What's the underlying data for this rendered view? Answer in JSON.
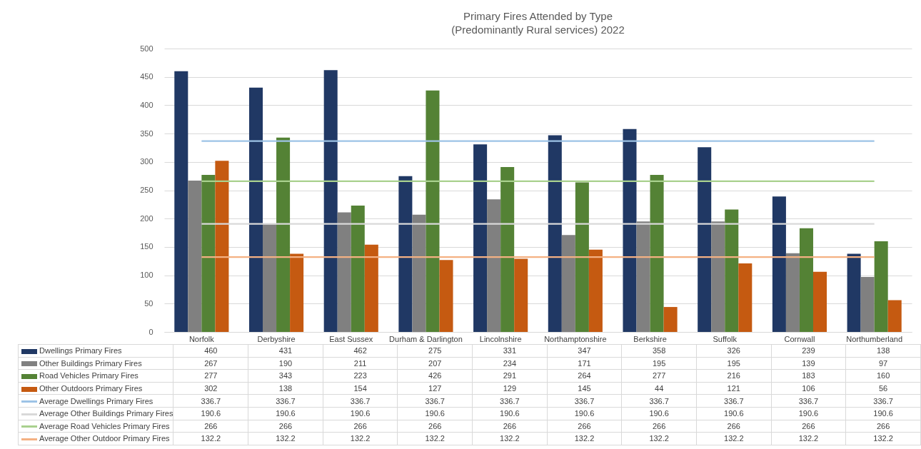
{
  "chart_data": {
    "type": "bar",
    "title": "Primary Fires Attended by Type\n(Predominantly Rural services) 2022",
    "categories": [
      "Norfolk",
      "Derbyshire",
      "East Sussex",
      "Durham & Darlington",
      "Lincolnshire",
      "Northamptonshire",
      "Berkshire",
      "Suffolk",
      "Cornwall",
      "Northumberland"
    ],
    "series": [
      {
        "name": "Dwellings Primary Fires",
        "color": "#203864",
        "values": [
          460,
          431,
          462,
          275,
          331,
          347,
          358,
          326,
          239,
          138
        ]
      },
      {
        "name": "Other Buildings Primary Fires",
        "color": "#808080",
        "values": [
          267,
          190,
          211,
          207,
          234,
          171,
          195,
          195,
          139,
          97
        ]
      },
      {
        "name": "Road Vehicles Primary Fires",
        "color": "#548235",
        "values": [
          277,
          343,
          223,
          426,
          291,
          264,
          277,
          216,
          183,
          160
        ]
      },
      {
        "name": "Other Outdoors Primary Fires",
        "color": "#c55a11",
        "values": [
          302,
          138,
          154,
          127,
          129,
          145,
          44,
          121,
          106,
          56
        ]
      },
      {
        "name": "Average Dwellings Primary Fires",
        "type": "line",
        "color": "#9dc3e6",
        "values": [
          336.7,
          336.7,
          336.7,
          336.7,
          336.7,
          336.7,
          336.7,
          336.7,
          336.7,
          336.7
        ]
      },
      {
        "name": "Average Other Buildings Primary Fires",
        "type": "line",
        "color": "#d9d9d9",
        "values": [
          190.6,
          190.6,
          190.6,
          190.6,
          190.6,
          190.6,
          190.6,
          190.6,
          190.6,
          190.6
        ]
      },
      {
        "name": "Average Road Vehicles Primary Fires",
        "type": "line",
        "color": "#a9d18e",
        "values": [
          266,
          266,
          266,
          266,
          266,
          266,
          266,
          266,
          266,
          266
        ]
      },
      {
        "name": "Average Other Outdoor Primary Fires",
        "type": "line",
        "color": "#f4b183",
        "values": [
          132.2,
          132.2,
          132.2,
          132.2,
          132.2,
          132.2,
          132.2,
          132.2,
          132.2,
          132.2
        ]
      }
    ],
    "ylim": [
      0,
      500
    ],
    "yticks": [
      0,
      50,
      100,
      150,
      200,
      250,
      300,
      350,
      400,
      450,
      500
    ],
    "grid": "y",
    "legend": "bottom",
    "data_labels": true
  }
}
